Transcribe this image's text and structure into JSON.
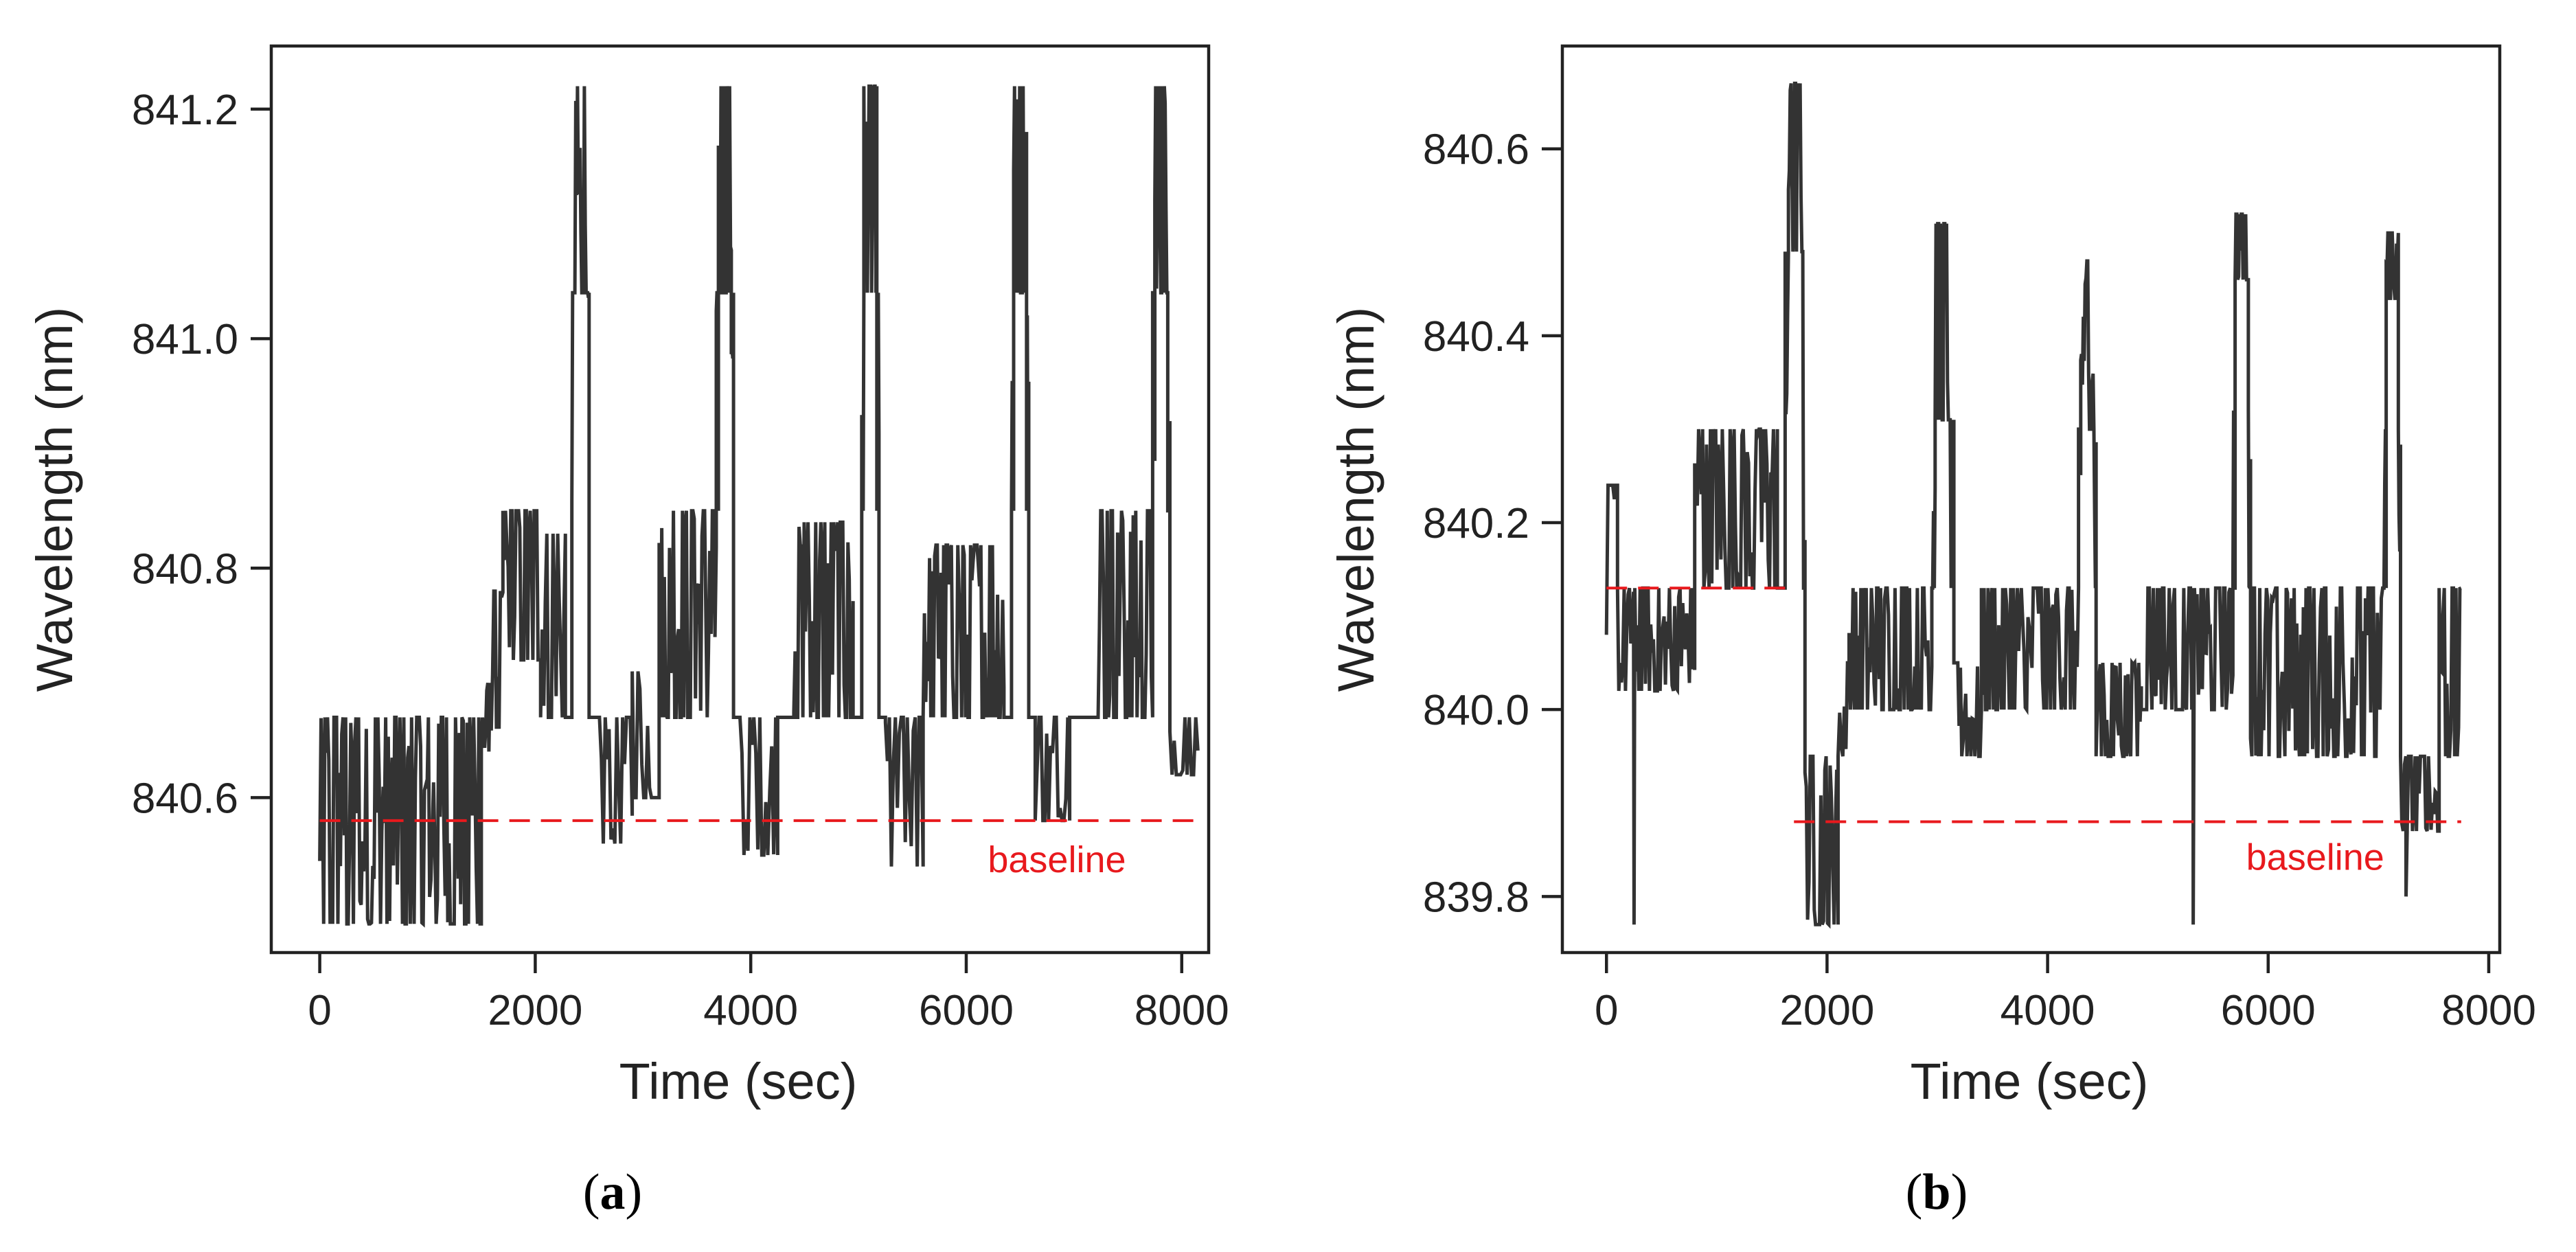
{
  "colors": {
    "series": "#333333",
    "baseline": "#e8191d",
    "axis": "#222222"
  },
  "chart_data": [
    {
      "type": "line",
      "panel_label": "a",
      "title": "",
      "xlabel": "Time (sec)",
      "ylabel": "Wavelength (nm)",
      "xlim": [
        -450,
        8250
      ],
      "ylim": [
        840.465,
        841.255
      ],
      "xticks": [
        0,
        2000,
        4000,
        6000,
        8000
      ],
      "xtick_labels": [
        "0",
        "2000",
        "4000",
        "6000",
        "8000"
      ],
      "yticks": [
        840.6,
        840.8,
        841.0,
        841.2
      ],
      "ytick_labels": [
        "840.6",
        "840.8",
        "841.0",
        "841.2"
      ],
      "baseline": {
        "label": "baseline",
        "value": 840.58,
        "x_start": 0,
        "x_end": 8150
      },
      "series": [
        {
          "name": "wavelength",
          "segments": [
            {
              "t0": 0,
              "t1": 1500,
              "lo": 840.49,
              "hi": 840.67,
              "tick": 12
            },
            {
              "t0": 1500,
              "t1": 1580,
              "lo": 840.6,
              "hi": 840.7,
              "tick": 10
            },
            {
              "t0": 1580,
              "t1": 1700,
              "lo": 840.66,
              "hi": 840.78,
              "tick": 12
            },
            {
              "t0": 1700,
              "t1": 2050,
              "lo": 840.72,
              "hi": 840.85,
              "tick": 12
            },
            {
              "t0": 2050,
              "t1": 2280,
              "lo": 840.67,
              "hi": 840.83,
              "tick": 14
            },
            {
              "t0": 2280,
              "t1": 2340,
              "lo": 840.67,
              "hi": 840.67,
              "tick": 60
            },
            {
              "t0": 2340,
              "t1": 2360,
              "lo": 840.85,
              "hi": 841.04,
              "tick": 8
            },
            {
              "t0": 2360,
              "t1": 2480,
              "lo": 841.04,
              "hi": 841.22,
              "tick": 8
            },
            {
              "t0": 2480,
              "t1": 2500,
              "lo": 840.85,
              "hi": 841.04,
              "tick": 8
            },
            {
              "t0": 2500,
              "t1": 2560,
              "lo": 840.67,
              "hi": 840.67,
              "tick": 60
            },
            {
              "t0": 2560,
              "t1": 2900,
              "lo": 840.56,
              "hi": 840.67,
              "tick": 18
            },
            {
              "t0": 2900,
              "t1": 3150,
              "lo": 840.6,
              "hi": 840.71,
              "tick": 18
            },
            {
              "t0": 3150,
              "t1": 3680,
              "lo": 840.67,
              "hi": 840.85,
              "tick": 12
            },
            {
              "t0": 3680,
              "t1": 3700,
              "lo": 840.85,
              "hi": 841.04,
              "tick": 8
            },
            {
              "t0": 3700,
              "t1": 3820,
              "lo": 841.04,
              "hi": 841.22,
              "tick": 8
            },
            {
              "t0": 3820,
              "t1": 3840,
              "lo": 840.85,
              "hi": 841.04,
              "tick": 8
            },
            {
              "t0": 3840,
              "t1": 3900,
              "lo": 840.67,
              "hi": 840.67,
              "tick": 60
            },
            {
              "t0": 3900,
              "t1": 4250,
              "lo": 840.55,
              "hi": 840.67,
              "tick": 18
            },
            {
              "t0": 4250,
              "t1": 4400,
              "lo": 840.67,
              "hi": 840.67,
              "tick": 50
            },
            {
              "t0": 4400,
              "t1": 4950,
              "lo": 840.67,
              "hi": 840.84,
              "tick": 12
            },
            {
              "t0": 4950,
              "t1": 5030,
              "lo": 840.67,
              "hi": 840.67,
              "tick": 40
            },
            {
              "t0": 5030,
              "t1": 5050,
              "lo": 840.85,
              "hi": 841.04,
              "tick": 8
            },
            {
              "t0": 5050,
              "t1": 5170,
              "lo": 841.04,
              "hi": 841.22,
              "tick": 8
            },
            {
              "t0": 5170,
              "t1": 5190,
              "lo": 840.85,
              "hi": 841.04,
              "tick": 8
            },
            {
              "t0": 5190,
              "t1": 5250,
              "lo": 840.67,
              "hi": 840.67,
              "tick": 60
            },
            {
              "t0": 5250,
              "t1": 5600,
              "lo": 840.54,
              "hi": 840.67,
              "tick": 18
            },
            {
              "t0": 5600,
              "t1": 6350,
              "lo": 840.67,
              "hi": 840.82,
              "tick": 12
            },
            {
              "t0": 6350,
              "t1": 6420,
              "lo": 840.67,
              "hi": 840.67,
              "tick": 40
            },
            {
              "t0": 6420,
              "t1": 6440,
              "lo": 840.85,
              "hi": 841.04,
              "tick": 8
            },
            {
              "t0": 6440,
              "t1": 6560,
              "lo": 841.04,
              "hi": 841.22,
              "tick": 8
            },
            {
              "t0": 6560,
              "t1": 6580,
              "lo": 840.85,
              "hi": 841.04,
              "tick": 8
            },
            {
              "t0": 6580,
              "t1": 6640,
              "lo": 840.67,
              "hi": 840.67,
              "tick": 60
            },
            {
              "t0": 6640,
              "t1": 6960,
              "lo": 840.58,
              "hi": 840.67,
              "tick": 18
            },
            {
              "t0": 6960,
              "t1": 7200,
              "lo": 840.67,
              "hi": 840.67,
              "tick": 60
            },
            {
              "t0": 7200,
              "t1": 7730,
              "lo": 840.67,
              "hi": 840.85,
              "tick": 12
            },
            {
              "t0": 7730,
              "t1": 7750,
              "lo": 840.85,
              "hi": 841.04,
              "tick": 8
            },
            {
              "t0": 7750,
              "t1": 7870,
              "lo": 841.04,
              "hi": 841.22,
              "tick": 8
            },
            {
              "t0": 7870,
              "t1": 7890,
              "lo": 840.85,
              "hi": 841.04,
              "tick": 8
            },
            {
              "t0": 7890,
              "t1": 8150,
              "lo": 840.62,
              "hi": 840.67,
              "tick": 20
            }
          ]
        }
      ]
    },
    {
      "type": "line",
      "panel_label": "b",
      "title": "",
      "xlabel": "Time (sec)",
      "ylabel": "Wavelength (nm)",
      "xlim": [
        -400,
        8100
      ],
      "ylim": [
        839.74,
        840.71
      ],
      "xticks": [
        0,
        2000,
        4000,
        6000,
        8000
      ],
      "xtick_labels": [
        "0",
        "2000",
        "4000",
        "6000",
        "8000"
      ],
      "yticks": [
        839.8,
        840.0,
        840.2,
        840.4,
        840.6
      ],
      "ytick_labels": [
        "839.8",
        "840.0",
        "840.2",
        "840.4",
        "840.6"
      ],
      "baselines": [
        {
          "value": 840.13,
          "x_start": 0,
          "x_end": 1700
        },
        {
          "label": "baseline",
          "value": 839.88,
          "x_start": 1700,
          "x_end": 7750
        }
      ],
      "spikes": [
        {
          "t": 250,
          "value": 839.77
        },
        {
          "t": 5320,
          "value": 839.77
        },
        {
          "t": 7250,
          "value": 839.8
        }
      ],
      "series": [
        {
          "name": "wavelength",
          "segments": [
            {
              "t0": 0,
              "t1": 100,
              "lo": 840.08,
              "hi": 840.24,
              "tick": 14
            },
            {
              "t0": 100,
              "t1": 800,
              "lo": 840.02,
              "hi": 840.13,
              "tick": 12
            },
            {
              "t0": 800,
              "t1": 1550,
              "lo": 840.13,
              "hi": 840.3,
              "tick": 12
            },
            {
              "t0": 1550,
              "t1": 1620,
              "lo": 840.13,
              "hi": 840.13,
              "tick": 40
            },
            {
              "t0": 1620,
              "t1": 1650,
              "lo": 840.3,
              "hi": 840.49,
              "tick": 8
            },
            {
              "t0": 1650,
              "t1": 1780,
              "lo": 840.49,
              "hi": 840.67,
              "tick": 8
            },
            {
              "t0": 1780,
              "t1": 1800,
              "lo": 840.13,
              "hi": 840.49,
              "tick": 8
            },
            {
              "t0": 1800,
              "t1": 2100,
              "lo": 839.77,
              "hi": 839.95,
              "tick": 12
            },
            {
              "t0": 2100,
              "t1": 2200,
              "lo": 839.95,
              "hi": 840.05,
              "tick": 14
            },
            {
              "t0": 2200,
              "t1": 2950,
              "lo": 840.0,
              "hi": 840.13,
              "tick": 12
            },
            {
              "t0": 2950,
              "t1": 2980,
              "lo": 840.13,
              "hi": 840.3,
              "tick": 8
            },
            {
              "t0": 2980,
              "t1": 3100,
              "lo": 840.31,
              "hi": 840.52,
              "tick": 8
            },
            {
              "t0": 3100,
              "t1": 3150,
              "lo": 840.13,
              "hi": 840.31,
              "tick": 8
            },
            {
              "t0": 3150,
              "t1": 3400,
              "lo": 839.95,
              "hi": 840.05,
              "tick": 12
            },
            {
              "t0": 3400,
              "t1": 4280,
              "lo": 840.0,
              "hi": 840.13,
              "tick": 12
            },
            {
              "t0": 4280,
              "t1": 4300,
              "lo": 840.13,
              "hi": 840.3,
              "tick": 8
            },
            {
              "t0": 4300,
              "t1": 4420,
              "lo": 840.3,
              "hi": 840.48,
              "tick": 8
            },
            {
              "t0": 4420,
              "t1": 4440,
              "lo": 840.13,
              "hi": 840.3,
              "tick": 8
            },
            {
              "t0": 4440,
              "t1": 4850,
              "lo": 839.95,
              "hi": 840.05,
              "tick": 12
            },
            {
              "t0": 4850,
              "t1": 5680,
              "lo": 840.0,
              "hi": 840.13,
              "tick": 12
            },
            {
              "t0": 5680,
              "t1": 5700,
              "lo": 840.13,
              "hi": 840.32,
              "tick": 8
            },
            {
              "t0": 5700,
              "t1": 5820,
              "lo": 840.46,
              "hi": 840.53,
              "tick": 8
            },
            {
              "t0": 5820,
              "t1": 5840,
              "lo": 840.13,
              "hi": 840.32,
              "tick": 8
            },
            {
              "t0": 5840,
              "t1": 7050,
              "lo": 839.95,
              "hi": 840.13,
              "tick": 12
            },
            {
              "t0": 7050,
              "t1": 7070,
              "lo": 840.13,
              "hi": 840.3,
              "tick": 8
            },
            {
              "t0": 7070,
              "t1": 7180,
              "lo": 840.44,
              "hi": 840.51,
              "tick": 8
            },
            {
              "t0": 7180,
              "t1": 7200,
              "lo": 840.13,
              "hi": 840.3,
              "tick": 8
            },
            {
              "t0": 7200,
              "t1": 7550,
              "lo": 839.87,
              "hi": 839.95,
              "tick": 12
            },
            {
              "t0": 7550,
              "t1": 7750,
              "lo": 839.95,
              "hi": 840.13,
              "tick": 12
            }
          ]
        }
      ]
    }
  ]
}
